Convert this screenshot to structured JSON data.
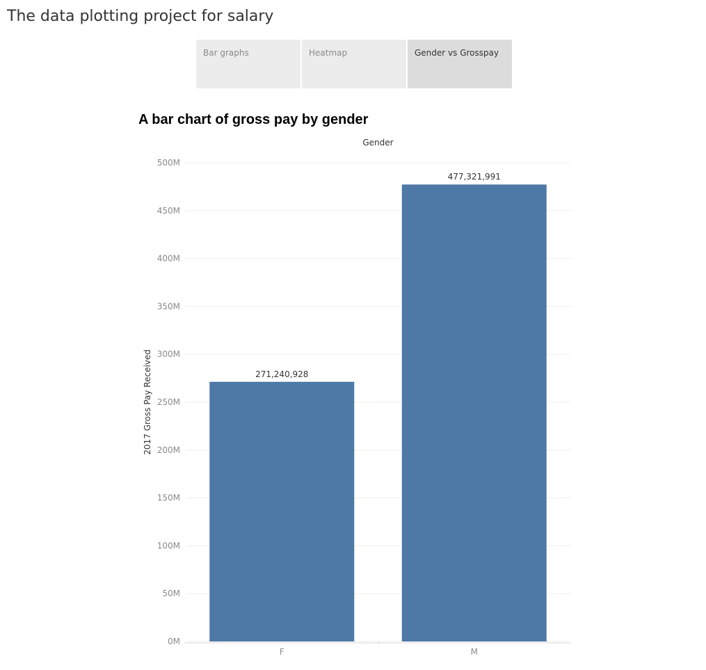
{
  "story": {
    "title": "The data plotting project for salary"
  },
  "tabs": [
    {
      "label": "Bar graphs",
      "active": false
    },
    {
      "label": "Heatmap",
      "active": false
    },
    {
      "label": "Gender vs Grosspay",
      "active": true
    }
  ],
  "colors": {
    "bar": "#4e79a7",
    "tab_bg": "#ececec",
    "tab_active_bg": "#dcdcdc"
  },
  "chart_data": {
    "type": "bar",
    "title": "A bar chart of gross pay by gender",
    "column_header": "Gender",
    "xlabel": "",
    "ylabel": "2017 Gross Pay Received",
    "categories": [
      "F",
      "M"
    ],
    "values": [
      271240928,
      477321991
    ],
    "data_labels": [
      "271,240,928",
      "477,321,991"
    ],
    "ylim": [
      0,
      500000000
    ],
    "yticks": [
      {
        "value": 0,
        "label": "0M"
      },
      {
        "value": 50000000,
        "label": "50M"
      },
      {
        "value": 100000000,
        "label": "100M"
      },
      {
        "value": 150000000,
        "label": "150M"
      },
      {
        "value": 200000000,
        "label": "200M"
      },
      {
        "value": 250000000,
        "label": "250M"
      },
      {
        "value": 300000000,
        "label": "300M"
      },
      {
        "value": 350000000,
        "label": "350M"
      },
      {
        "value": 400000000,
        "label": "400M"
      },
      {
        "value": 450000000,
        "label": "450M"
      },
      {
        "value": 500000000,
        "label": "500M"
      }
    ],
    "grid": true
  }
}
